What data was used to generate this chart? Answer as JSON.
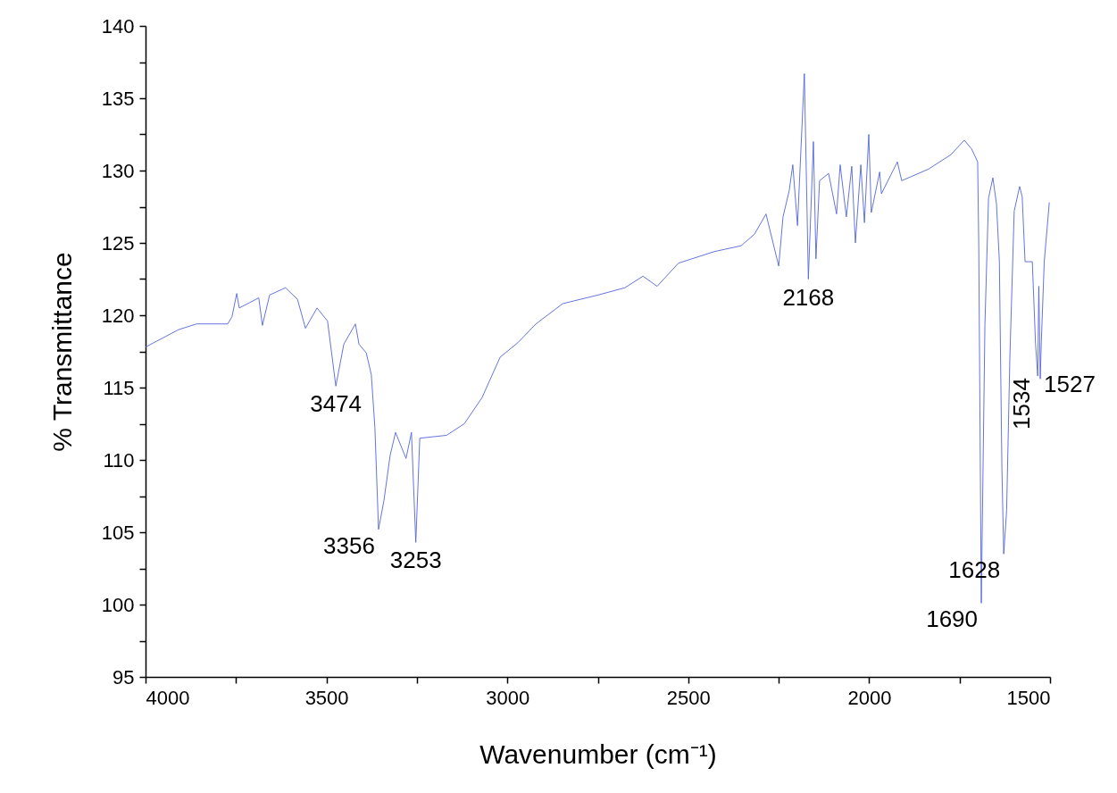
{
  "chart_data": {
    "type": "line",
    "xlabel": "Wavenumber (cm⁻¹)",
    "ylabel": "% Transmittance",
    "xlim": [
      4000,
      1500
    ],
    "ylim": [
      95,
      140
    ],
    "xticks": [
      4000,
      {
        "value": 3750,
        "label": null
      },
      3500,
      {
        "value": 3250,
        "label": null
      },
      3000,
      {
        "value": 2750,
        "label": null
      },
      2500,
      {
        "value": 2250,
        "label": null
      },
      2000,
      {
        "value": 1750,
        "label": null
      },
      1500
    ],
    "yticks": [
      95,
      {
        "value": 97.5,
        "label": null
      },
      100,
      {
        "value": 102.5,
        "label": null
      },
      105,
      {
        "value": 107.5,
        "label": null
      },
      110,
      {
        "value": 112.5,
        "label": null
      },
      115,
      {
        "value": 117.5,
        "label": null
      },
      120,
      {
        "value": 122.5,
        "label": null
      },
      125,
      {
        "value": 127.5,
        "label": null
      },
      130,
      {
        "value": 132.5,
        "label": null
      },
      135,
      {
        "value": 137.5,
        "label": null
      },
      140
    ],
    "grid": false,
    "marker": "none",
    "line_style": "solid",
    "series": [
      {
        "color": "#5264dc",
        "x": [
          4000,
          3909,
          3859,
          3773,
          3761,
          3748,
          3741,
          3687,
          3677,
          3657,
          3613,
          3580,
          3558,
          3526,
          3497,
          3474,
          3452,
          3420,
          3410,
          3390,
          3376,
          3366,
          3356,
          3341,
          3324,
          3309,
          3280,
          3265,
          3253,
          3242,
          3168,
          3119,
          3070,
          3020,
          2971,
          2921,
          2847,
          2749,
          2675,
          2625,
          2586,
          2527,
          2428,
          2354,
          2317,
          2285,
          2250,
          2238,
          2221,
          2211,
          2198,
          2179,
          2168,
          2154,
          2147,
          2137,
          2112,
          2090,
          2080,
          2063,
          2048,
          2038,
          2023,
          2013,
          2001,
          1994,
          1971,
          1966,
          1922,
          1910,
          1836,
          1774,
          1737,
          1717,
          1700,
          1697,
          1690,
          1680,
          1670,
          1658,
          1648,
          1640,
          1633,
          1628,
          1620,
          1611,
          1599,
          1584,
          1577,
          1569,
          1549,
          1540,
          1534,
          1531,
          1527,
          1524,
          1516,
          1502
        ],
        "values": [
          117.8,
          119.0,
          119.4,
          119.4,
          119.9,
          121.5,
          120.5,
          121.2,
          119.3,
          121.4,
          121.9,
          121.1,
          119.1,
          120.5,
          119.6,
          115.1,
          118.0,
          119.4,
          118.0,
          117.4,
          115.9,
          112.2,
          105.2,
          107.2,
          110.3,
          111.9,
          110.1,
          111.9,
          104.3,
          111.5,
          111.7,
          112.5,
          114.3,
          117.1,
          118.1,
          119.4,
          120.8,
          121.4,
          121.9,
          122.7,
          122.0,
          123.6,
          124.4,
          124.8,
          125.6,
          127.0,
          123.4,
          126.8,
          128.6,
          130.4,
          126.2,
          136.7,
          122.5,
          132.0,
          123.9,
          129.3,
          129.8,
          127.0,
          130.4,
          126.8,
          130.3,
          125.0,
          130.4,
          126.4,
          132.5,
          127.1,
          129.9,
          128.4,
          130.6,
          129.3,
          130.1,
          131.1,
          132.1,
          131.5,
          130.6,
          124.8,
          100.1,
          119.3,
          128.1,
          129.5,
          127.7,
          123.7,
          109.4,
          103.5,
          106.5,
          117.1,
          127.2,
          128.9,
          128.2,
          123.7,
          123.7,
          118.0,
          115.8,
          122.0,
          115.6,
          118.2,
          123.7,
          127.8
        ]
      }
    ],
    "annotations": [
      {
        "text": "3474",
        "x": 3474,
        "y": 115.1
      },
      {
        "text": "3356",
        "x": 3356,
        "y": 105.2
      },
      {
        "text": "3253",
        "x": 3253,
        "y": 104.3
      },
      {
        "text": "2168",
        "x": 2168,
        "y": 122.5
      },
      {
        "text": "1690",
        "x": 1690,
        "y": 100.1
      },
      {
        "text": "1628",
        "x": 1628,
        "y": 103.5
      },
      {
        "text": "1534",
        "x": 1534,
        "y": 115.8
      },
      {
        "text": "1527",
        "x": 1527,
        "y": 115.6
      }
    ]
  }
}
